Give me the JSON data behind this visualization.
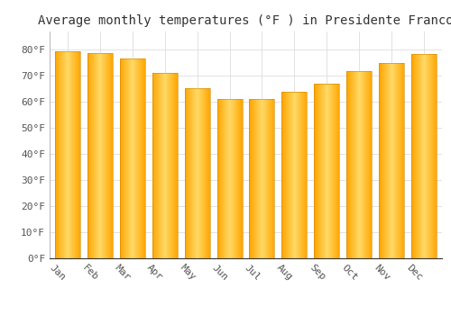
{
  "title": "Average monthly temperatures (°F ) in Presidente Franco",
  "months": [
    "Jan",
    "Feb",
    "Mar",
    "Apr",
    "May",
    "Jun",
    "Jul",
    "Aug",
    "Sep",
    "Oct",
    "Nov",
    "Dec"
  ],
  "values": [
    79.5,
    78.8,
    76.5,
    71.0,
    65.3,
    61.2,
    61.2,
    63.7,
    67.0,
    71.8,
    75.0,
    78.3
  ],
  "bar_color_center": "#FFD966",
  "bar_color_edge": "#FFA500",
  "yticks": [
    0,
    10,
    20,
    30,
    40,
    50,
    60,
    70,
    80
  ],
  "ytick_labels": [
    "0°F",
    "10°F",
    "20°F",
    "30°F",
    "40°F",
    "50°F",
    "60°F",
    "70°F",
    "80°F"
  ],
  "ylim": [
    0,
    87
  ],
  "background_color": "#FFFFFF",
  "grid_color": "#DDDDDD",
  "title_fontsize": 10,
  "tick_fontsize": 8,
  "xlabel_rotation": -45,
  "bar_width": 0.78
}
